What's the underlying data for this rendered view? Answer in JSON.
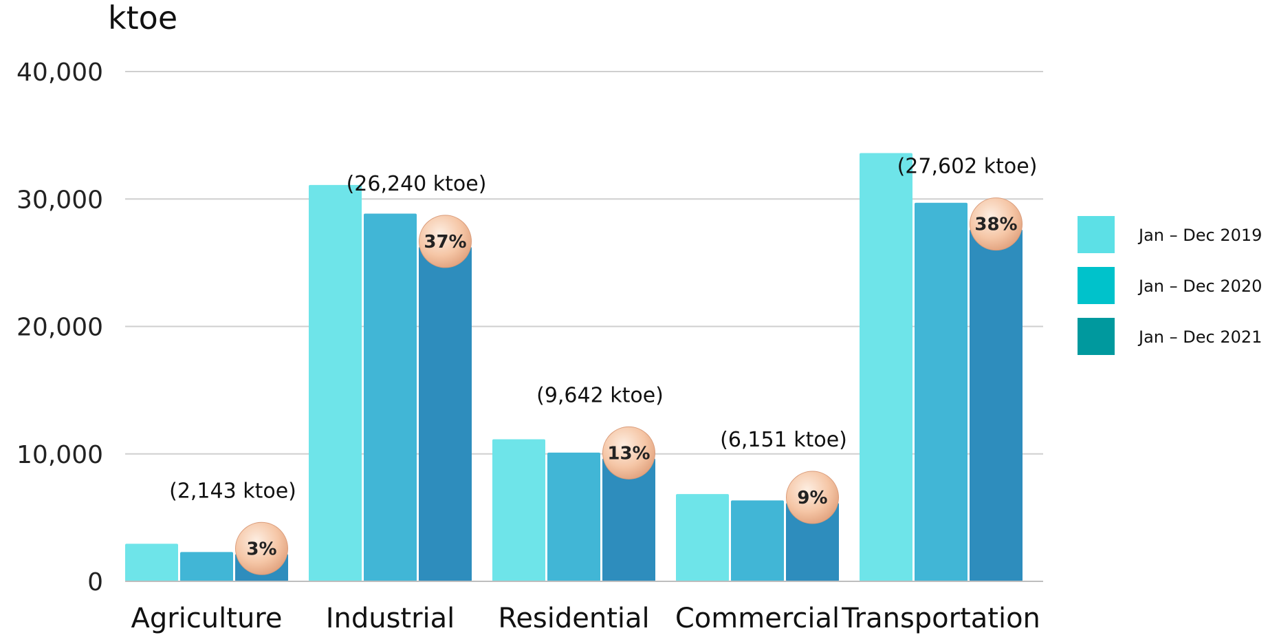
{
  "chart_data": {
    "type": "bar",
    "ylabel": "ktoe",
    "ylim": [
      0,
      40000
    ],
    "yticks": [
      {
        "value": 0,
        "label": "0"
      },
      {
        "value": 10000,
        "label": "10,000"
      },
      {
        "value": 20000,
        "label": "20,000"
      },
      {
        "value": 30000,
        "label": "30,000"
      },
      {
        "value": 40000,
        "label": "40,000"
      }
    ],
    "grid": true,
    "legend_position": "right",
    "categories": [
      "Agriculture",
      "Industrial",
      "Residential",
      "Commercial",
      "Transportation"
    ],
    "series": [
      {
        "name": "Jan – Dec 2019",
        "color": "#6ee4e9",
        "legend_color": "#5ce0e6",
        "values": [
          2950,
          31100,
          11150,
          6850,
          33600
        ]
      },
      {
        "name": "Jan – Dec 2020",
        "color": "#41b6d6",
        "legend_color": "#00c2cb",
        "values": [
          2300,
          28850,
          10100,
          6350,
          29700
        ]
      },
      {
        "name": "Jan – Dec 2021",
        "color": "#2e8dbd",
        "legend_color": "#00999e",
        "values": [
          2143,
          26240,
          9642,
          6151,
          27602
        ]
      }
    ],
    "annotations": [
      {
        "category": "Agriculture",
        "value_label": "(2,143 ktoe)",
        "share_label": "3%"
      },
      {
        "category": "Industrial",
        "value_label": "(26,240 ktoe)",
        "share_label": "37%"
      },
      {
        "category": "Residential",
        "value_label": "(9,642 ktoe)",
        "share_label": "13%"
      },
      {
        "category": "Commercial",
        "value_label": "(6,151 ktoe)",
        "share_label": "9%"
      },
      {
        "category": "Transportation",
        "value_label": "(27,602 ktoe)",
        "share_label": "38%"
      }
    ]
  }
}
